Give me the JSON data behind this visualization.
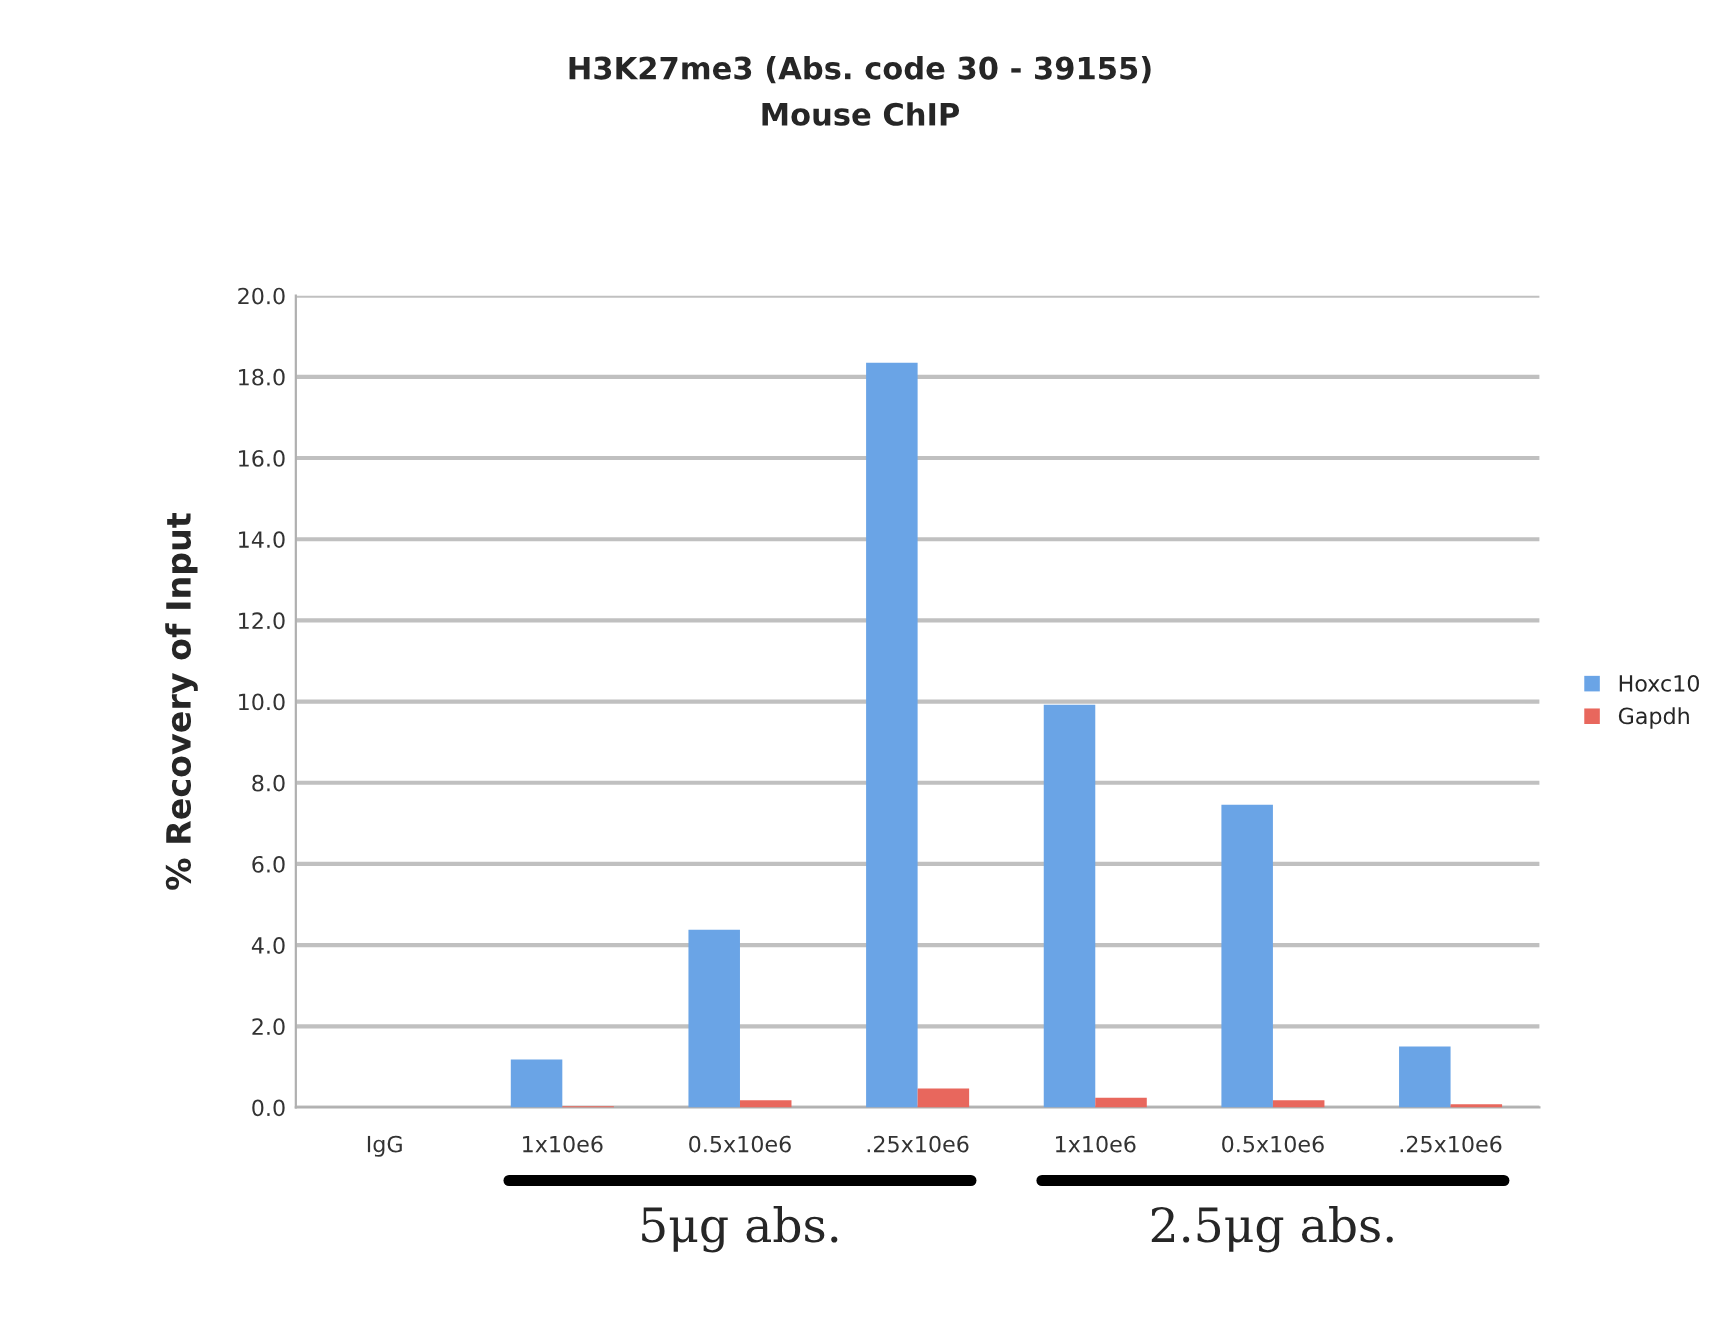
{
  "chart_data": {
    "type": "bar",
    "title": "H3K27me3 (Abs. code 30 - 39155)",
    "subtitle": "Mouse ChIP",
    "ylabel": "% Recovery of Input",
    "categories": [
      "IgG",
      "1x10e6",
      "0.5x10e6",
      ".25x10e6",
      "1x10e6",
      "0.5x10e6",
      ".25x10e6"
    ],
    "series": [
      {
        "name": "Hoxc10",
        "color": "#6aa4e6",
        "values": [
          null,
          1.18,
          4.38,
          18.35,
          9.92,
          7.46,
          1.5
        ]
      },
      {
        "name": "Gapdh",
        "color": "#e8675d",
        "values": [
          null,
          0.03,
          0.18,
          0.47,
          0.24,
          0.18,
          0.08
        ]
      }
    ],
    "ylim": [
      0,
      20
    ],
    "yticks": [
      {
        "value": 0,
        "label": "0.0"
      },
      {
        "value": 2,
        "label": "2.0"
      },
      {
        "value": 4,
        "label": "4.0"
      },
      {
        "value": 6,
        "label": "6.0"
      },
      {
        "value": 8,
        "label": "8.0"
      },
      {
        "value": 10,
        "label": "10.0"
      },
      {
        "value": 12,
        "label": "12.0"
      },
      {
        "value": 14,
        "label": "14.0"
      },
      {
        "value": 16,
        "label": "16.0"
      },
      {
        "value": 18,
        "label": "18.0"
      },
      {
        "value": 20,
        "label": "20.0"
      }
    ],
    "grid": "y",
    "legend": "right",
    "annotations": [
      "5μg abs.",
      "2.5μg abs."
    ]
  }
}
